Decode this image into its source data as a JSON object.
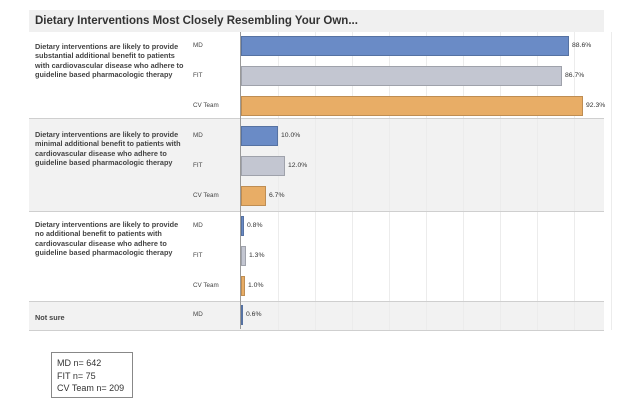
{
  "chart_data": {
    "type": "bar",
    "orientation": "horizontal",
    "title": "Dietary Interventions Most Closely Resembling Your Own...",
    "xlim": [
      0,
      100
    ],
    "grid": true,
    "groups": [
      {
        "label": "Dietary interventions are likely to provide substantial additional benefit to patients with cardiovascular disease who adhere to guideline based pharmacologic therapy",
        "series": [
          {
            "name": "MD",
            "value": 88.6,
            "label": "88.6%"
          },
          {
            "name": "FIT",
            "value": 86.7,
            "label": "86.7%"
          },
          {
            "name": "CV Team",
            "value": 92.3,
            "label": "92.3%"
          }
        ]
      },
      {
        "label": "Dietary interventions are likely to provide minimal additional benefit to patients with cardiovascular disease who adhere to guideline based pharmacologic therapy",
        "series": [
          {
            "name": "MD",
            "value": 10.0,
            "label": "10.0%"
          },
          {
            "name": "FIT",
            "value": 12.0,
            "label": "12.0%"
          },
          {
            "name": "CV Team",
            "value": 6.7,
            "label": "6.7%"
          }
        ]
      },
      {
        "label": "Dietary interventions are likely to provide no additional benefit to patients with cardiovascular disease who adhere to guideline based pharmacologic therapy",
        "series": [
          {
            "name": "MD",
            "value": 0.8,
            "label": "0.8%"
          },
          {
            "name": "FIT",
            "value": 1.3,
            "label": "1.3%"
          },
          {
            "name": "CV Team",
            "value": 1.0,
            "label": "1.0%"
          }
        ]
      },
      {
        "label": "Not sure",
        "series": [
          {
            "name": "MD",
            "value": 0.6,
            "label": "0.6%"
          }
        ]
      }
    ],
    "colors": {
      "MD": "#6a8bc6",
      "FIT": "#c3c6d1",
      "CV Team": "#e8ad66"
    },
    "note": [
      "MD n= 642",
      "FIT n= 75",
      "CV Team n= 209"
    ]
  }
}
